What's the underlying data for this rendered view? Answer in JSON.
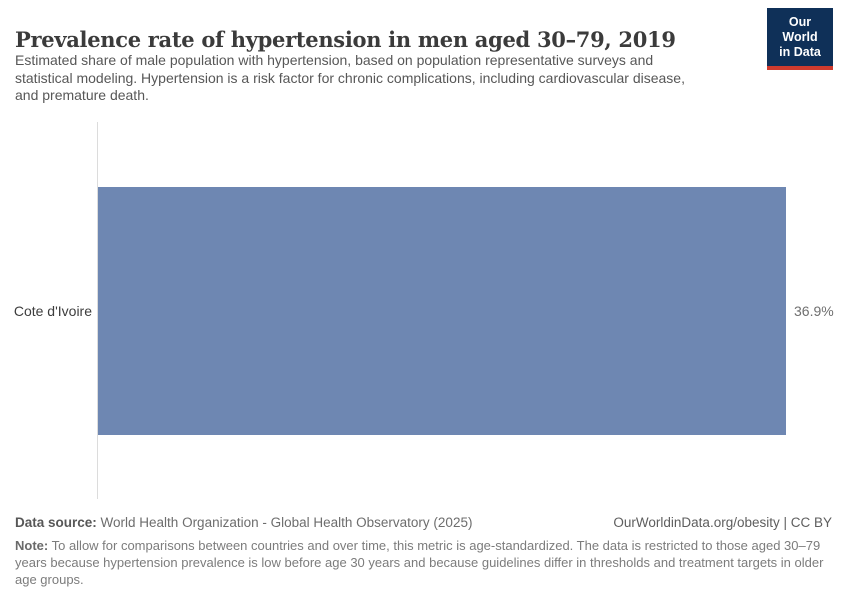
{
  "header": {
    "title": "Prevalence rate of hypertension in men aged 30–79, 2019",
    "subtitle_lines": [
      "Estimated share of male population with hypertension, based on population representative surveys and",
      "statistical modeling. Hypertension is a risk factor for chronic complications, including cardiovascular disease,",
      "and premature death."
    ],
    "logo": {
      "line1": "Our World",
      "line2": "in Data",
      "bg_color": "#0f3058",
      "accent_color": "#cf3b2e"
    }
  },
  "chart_data": {
    "type": "bar",
    "orientation": "horizontal",
    "title": "Prevalence rate of hypertension in men aged 30–79, 2019",
    "categories": [
      "Cote d'Ivoire"
    ],
    "values": [
      36.9
    ],
    "value_labels": [
      "36.9%"
    ],
    "unit": "%",
    "xlim": [
      0,
      36.9
    ],
    "grid": false,
    "legend": "none",
    "bar_color": "#6e87b2",
    "axis_line_color": "#dcdcdc"
  },
  "footer": {
    "source_label": "Data source:",
    "source_text": " World Health Organization - Global Health Observatory (2025)",
    "attribution": "OurWorldinData.org/obesity | CC BY",
    "note_label": "Note:",
    "note_text": " To allow for comparisons between countries and over time, this metric is age-standardized. The data is restricted to those aged 30–79 years because hypertension prevalence is low before age 30 years and because guidelines differ in thresholds and treatment targets in older age groups."
  }
}
